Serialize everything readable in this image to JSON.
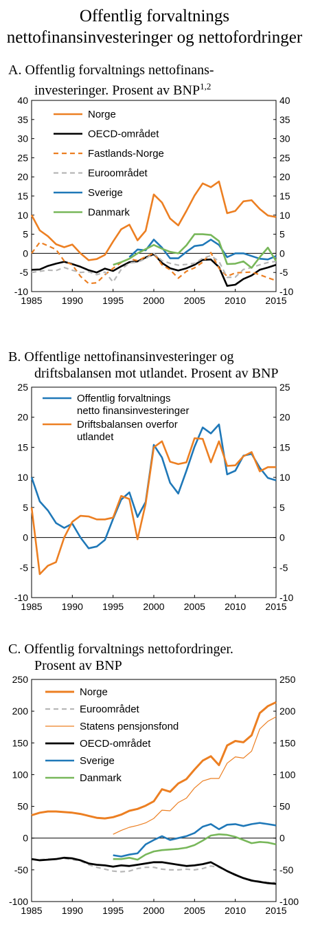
{
  "figure_title_line1": "Offentlig forvaltnings",
  "figure_title_line2": "nettofinansinvesteringer og nettofordringer",
  "panels": {
    "A": {
      "letter": "A.",
      "line1": "Offentlig forvaltnings nettofinans-",
      "line2": "investeringer. Prosent av BNP",
      "footnote": "1,2"
    },
    "B": {
      "letter": "B.",
      "line1": "Offentlige nettofinansinvesteringer og",
      "line2": "driftsbalansen mot utlandet. Prosent av BNP"
    },
    "C": {
      "letter": "C.",
      "line1": "Offentlig forvaltnings nettofordringer.",
      "line2": "Prosent av BNP"
    }
  },
  "chart_data": [
    {
      "id": "A",
      "type": "line",
      "xlim": [
        1985,
        2015
      ],
      "ylim": [
        -10,
        40
      ],
      "xticks": [
        1985,
        1990,
        1995,
        2000,
        2005,
        2010,
        2015
      ],
      "yticks": [
        -10,
        -5,
        0,
        5,
        10,
        15,
        20,
        25,
        30,
        35,
        40
      ],
      "legend_position": "top-left",
      "series": [
        {
          "name": "Norge",
          "color": "#ec7f22",
          "width": 2.6,
          "style": "solid",
          "x": [
            1985,
            1986,
            1987,
            1988,
            1989,
            1990,
            1991,
            1992,
            1993,
            1994,
            1995,
            1996,
            1997,
            1998,
            1999,
            2000,
            2001,
            2002,
            2003,
            2004,
            2005,
            2006,
            2007,
            2008,
            2009,
            2010,
            2011,
            2012,
            2013,
            2014,
            2015
          ],
          "y": [
            10.0,
            6.0,
            4.5,
            2.4,
            1.6,
            2.3,
            0.0,
            -1.8,
            -1.5,
            -0.4,
            3.1,
            6.3,
            7.5,
            3.4,
            5.9,
            15.4,
            13.3,
            9.1,
            7.3,
            11.1,
            15.1,
            18.3,
            17.3,
            18.8,
            10.5,
            11.1,
            13.6,
            13.9,
            11.6,
            9.9,
            9.5
          ]
        },
        {
          "name": "OECD-området",
          "color": "#000000",
          "width": 2.6,
          "style": "solid",
          "x": [
            1985,
            1986,
            1987,
            1988,
            1989,
            1990,
            1991,
            1992,
            1993,
            1994,
            1995,
            1996,
            1997,
            1998,
            1999,
            2000,
            2001,
            2002,
            2003,
            2004,
            2005,
            2006,
            2007,
            2008,
            2009,
            2010,
            2011,
            2012,
            2013,
            2014,
            2015
          ],
          "y": [
            -4.3,
            -4.2,
            -3.3,
            -2.7,
            -2.2,
            -2.8,
            -3.5,
            -4.4,
            -5.0,
            -4.0,
            -4.6,
            -3.4,
            -2.3,
            -2.1,
            -1.1,
            -0.2,
            -2.5,
            -3.9,
            -4.5,
            -3.9,
            -3.0,
            -1.7,
            -1.6,
            -3.6,
            -8.5,
            -8.2,
            -6.7,
            -5.8,
            -4.3,
            -3.7,
            -3.0
          ]
        },
        {
          "name": "Fastlands-Norge",
          "color": "#ec7f22",
          "width": 2.2,
          "style": "dashed",
          "x": [
            1985,
            1986,
            1987,
            1988,
            1989,
            1990,
            1991,
            1992,
            1993,
            1994,
            1995,
            1996,
            1997,
            1998,
            1999,
            2000,
            2001,
            2002,
            2003,
            2004,
            2005,
            2006,
            2007,
            2008,
            2009,
            2010,
            2011,
            2012,
            2013,
            2014,
            2015
          ],
          "y": [
            0.0,
            2.9,
            2.0,
            1.0,
            -2.0,
            -3.0,
            -6.0,
            -7.9,
            -7.7,
            -5.6,
            -3.9,
            -2.4,
            -1.4,
            -1.9,
            -0.9,
            0.0,
            -3.0,
            -4.3,
            -6.5,
            -4.7,
            -3.8,
            -2.3,
            0.2,
            -3.9,
            -6.0,
            -5.1,
            -5.0,
            -4.9,
            -5.6,
            -6.4,
            -7.1
          ]
        },
        {
          "name": "Euroområdet",
          "color": "#b7b7b7",
          "width": 2.2,
          "style": "dashed",
          "x": [
            1985,
            1986,
            1987,
            1988,
            1989,
            1990,
            1991,
            1992,
            1993,
            1994,
            1995,
            1996,
            1997,
            1998,
            1999,
            2000,
            2001,
            2002,
            2003,
            2004,
            2005,
            2006,
            2007,
            2008,
            2009,
            2010,
            2011,
            2012,
            2013,
            2014,
            2015
          ],
          "y": [
            -5.0,
            -4.7,
            -4.4,
            -4.5,
            -3.7,
            -4.4,
            -5.0,
            -4.8,
            -5.6,
            -4.9,
            -7.5,
            -4.2,
            -2.5,
            -2.3,
            -1.4,
            0.0,
            -1.9,
            -2.6,
            -3.1,
            -2.9,
            -2.6,
            -1.3,
            -0.6,
            -2.1,
            -6.3,
            -6.2,
            -4.2,
            -3.7,
            -3.0,
            -2.4,
            -2.1
          ]
        },
        {
          "name": "Sverige",
          "color": "#1f78b8",
          "width": 2.6,
          "style": "solid",
          "x": [
            1997,
            1998,
            1999,
            2000,
            2001,
            2002,
            2003,
            2004,
            2005,
            2006,
            2007,
            2008,
            2009,
            2010,
            2011,
            2012,
            2013,
            2014,
            2015
          ],
          "y": [
            -1.0,
            1.0,
            0.8,
            3.6,
            1.5,
            -1.3,
            -1.3,
            0.4,
            1.9,
            2.2,
            3.6,
            2.2,
            -1.0,
            0.0,
            0.0,
            -0.7,
            -1.4,
            -1.6,
            -0.7
          ]
        },
        {
          "name": "Danmark",
          "color": "#78b75a",
          "width": 2.6,
          "style": "solid",
          "x": [
            1995,
            1996,
            1997,
            1998,
            1999,
            2000,
            2001,
            2002,
            2003,
            2004,
            2005,
            2006,
            2007,
            2008,
            2009,
            2010,
            2011,
            2012,
            2013,
            2014,
            2015
          ],
          "y": [
            -3.0,
            -2.3,
            -1.4,
            0.0,
            1.1,
            2.2,
            1.2,
            0.4,
            0.0,
            2.1,
            5.0,
            5.0,
            4.8,
            3.2,
            -2.8,
            -2.7,
            -2.1,
            -3.8,
            -1.0,
            1.5,
            -2.0
          ]
        }
      ]
    },
    {
      "id": "B",
      "type": "line",
      "xlim": [
        1985,
        2015
      ],
      "ylim": [
        -10,
        25
      ],
      "xticks": [
        1985,
        1990,
        1995,
        2000,
        2005,
        2010,
        2015
      ],
      "yticks": [
        -10,
        -5,
        0,
        5,
        10,
        15,
        20,
        25
      ],
      "legend_position": "top-left",
      "series": [
        {
          "name": "Offentlig forvaltnings",
          "name_line2": "netto finansinvesteringer",
          "color": "#1f78b8",
          "width": 2.6,
          "style": "solid",
          "x": [
            1985,
            1986,
            1987,
            1988,
            1989,
            1990,
            1991,
            1992,
            1993,
            1994,
            1995,
            1996,
            1997,
            1998,
            1999,
            2000,
            2001,
            2002,
            2003,
            2004,
            2005,
            2006,
            2007,
            2008,
            2009,
            2010,
            2011,
            2012,
            2013,
            2014,
            2015
          ],
          "y": [
            10.0,
            6.0,
            4.5,
            2.4,
            1.6,
            2.3,
            0.0,
            -1.8,
            -1.5,
            -0.4,
            3.1,
            6.3,
            7.5,
            3.4,
            5.9,
            15.4,
            13.3,
            9.1,
            7.3,
            11.1,
            15.1,
            18.3,
            17.3,
            18.8,
            10.5,
            11.1,
            13.6,
            13.9,
            11.6,
            9.9,
            9.5
          ]
        },
        {
          "name": "Driftsbalansen overfor",
          "name_line2": "utlandet",
          "color": "#ec7f22",
          "width": 2.6,
          "style": "solid",
          "x": [
            1985,
            1986,
            1987,
            1988,
            1989,
            1990,
            1991,
            1992,
            1993,
            1994,
            1995,
            1996,
            1997,
            1998,
            1999,
            2000,
            2001,
            2002,
            2003,
            2004,
            2005,
            2006,
            2007,
            2008,
            2009,
            2010,
            2011,
            2012,
            2013,
            2014,
            2015
          ],
          "y": [
            5.0,
            -6.1,
            -4.7,
            -4.1,
            0.0,
            2.6,
            3.6,
            3.5,
            3.0,
            3.0,
            3.3,
            6.9,
            6.4,
            -0.3,
            5.6,
            15.0,
            16.0,
            12.6,
            12.2,
            12.5,
            16.5,
            16.4,
            12.5,
            16.0,
            11.9,
            12.0,
            13.5,
            14.2,
            11.0,
            11.7,
            11.7
          ]
        }
      ]
    },
    {
      "id": "C",
      "type": "line",
      "xlim": [
        1985,
        2015
      ],
      "ylim": [
        -100,
        250
      ],
      "xticks": [
        1985,
        1990,
        1995,
        2000,
        2005,
        2010,
        2015
      ],
      "yticks": [
        -100,
        -50,
        0,
        50,
        100,
        150,
        200,
        250
      ],
      "legend_position": "top-left",
      "series": [
        {
          "name": "Norge",
          "color": "#ec7f22",
          "width": 3.0,
          "style": "solid",
          "x": [
            1985,
            1986,
            1987,
            1988,
            1989,
            1990,
            1991,
            1992,
            1993,
            1994,
            1995,
            1996,
            1997,
            1998,
            1999,
            2000,
            2001,
            2002,
            2003,
            2004,
            2005,
            2006,
            2007,
            2008,
            2009,
            2010,
            2011,
            2012,
            2013,
            2014,
            2015
          ],
          "y": [
            36,
            40,
            42,
            42,
            41,
            40,
            38,
            35,
            32,
            31,
            33,
            37,
            43,
            46,
            51,
            58,
            77,
            73,
            86,
            93,
            108,
            122,
            129,
            115,
            146,
            153,
            151,
            162,
            197,
            208,
            214
          ]
        },
        {
          "name": "Euroområdet",
          "color": "#b7b7b7",
          "width": 2.2,
          "style": "dashed",
          "x": [
            1985,
            1986,
            1987,
            1988,
            1989,
            1990,
            1991,
            1992,
            1993,
            1994,
            1995,
            1996,
            1997,
            1998,
            1999,
            2000,
            2001,
            2002,
            2003,
            2004,
            2005,
            2006,
            2007,
            2008,
            2009,
            2010,
            2011,
            2012,
            2013,
            2014,
            2015
          ],
          "y": [
            -33,
            -34,
            -33,
            -33,
            -32,
            -34,
            -36,
            -42,
            -46,
            -49,
            -52,
            -53,
            -52,
            -48,
            -46,
            -46,
            -49,
            -50,
            -50,
            -49,
            -50,
            -48,
            -44,
            -46,
            -52,
            -57,
            -63,
            -66,
            -68,
            -70,
            -70
          ]
        },
        {
          "name": "Statens pensjonsfond",
          "color": "#ec7f22",
          "width": 1.2,
          "style": "solid",
          "x": [
            1995,
            1996,
            1997,
            1998,
            1999,
            2000,
            2001,
            2002,
            2003,
            2004,
            2005,
            2006,
            2007,
            2008,
            2009,
            2010,
            2011,
            2012,
            2013,
            2014,
            2015
          ],
          "y": [
            6,
            12,
            17,
            20,
            24,
            31,
            44,
            43,
            56,
            63,
            79,
            90,
            94,
            94,
            118,
            128,
            126,
            137,
            172,
            184,
            191
          ]
        },
        {
          "name": "OECD-området",
          "color": "#000000",
          "width": 2.8,
          "style": "solid",
          "x": [
            1985,
            1986,
            1987,
            1988,
            1989,
            1990,
            1991,
            1992,
            1993,
            1994,
            1995,
            1996,
            1997,
            1998,
            1999,
            2000,
            2001,
            2002,
            2003,
            2004,
            2005,
            2006,
            2007,
            2008,
            2009,
            2010,
            2011,
            2012,
            2013,
            2014,
            2015
          ],
          "y": [
            -33,
            -35,
            -34,
            -33,
            -31,
            -32,
            -35,
            -40,
            -42,
            -43,
            -45,
            -43,
            -44,
            -42,
            -40,
            -38,
            -38,
            -40,
            -42,
            -44,
            -43,
            -41,
            -38,
            -45,
            -52,
            -58,
            -63,
            -67,
            -69,
            -71,
            -72
          ]
        },
        {
          "name": "Sverige",
          "color": "#1f78b8",
          "width": 2.6,
          "style": "solid",
          "x": [
            1995,
            1996,
            1997,
            1998,
            1999,
            2000,
            2001,
            2002,
            2003,
            2004,
            2005,
            2006,
            2007,
            2008,
            2009,
            2010,
            2011,
            2012,
            2013,
            2014,
            2015
          ],
          "y": [
            -27,
            -29,
            -26,
            -24,
            -10,
            -3,
            3,
            -3,
            0,
            3,
            8,
            18,
            22,
            14,
            21,
            22,
            19,
            22,
            24,
            22,
            20
          ]
        },
        {
          "name": "Danmark",
          "color": "#78b75a",
          "width": 2.6,
          "style": "solid",
          "x": [
            1995,
            1996,
            1997,
            1998,
            1999,
            2000,
            2001,
            2002,
            2003,
            2004,
            2005,
            2006,
            2007,
            2008,
            2009,
            2010,
            2011,
            2012,
            2013,
            2014,
            2015
          ],
          "y": [
            -33,
            -33,
            -31,
            -34,
            -26,
            -21,
            -19,
            -18,
            -17,
            -15,
            -11,
            -4,
            4,
            6,
            5,
            2,
            -3,
            -8,
            -6,
            -7,
            -10
          ]
        }
      ]
    }
  ]
}
